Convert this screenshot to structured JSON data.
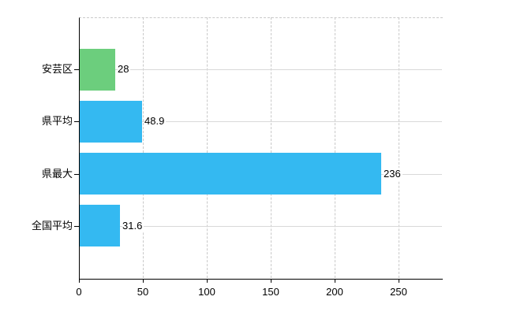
{
  "chart_data": {
    "type": "bar",
    "orientation": "horizontal",
    "title": "",
    "xlabel": "",
    "ylabel": "",
    "categories": [
      "安芸区",
      "県平均",
      "県最大",
      "全国平均"
    ],
    "values": [
      28,
      48.9,
      236,
      31.6
    ],
    "value_labels": [
      "28",
      "48.9",
      "236",
      "31.6"
    ],
    "bar_colors": [
      "#6CCE7D",
      "#34B9F1",
      "#34B9F1",
      "#34B9F1"
    ],
    "xlim": [
      0,
      284
    ],
    "x_ticks": [
      0,
      50,
      100,
      150,
      200,
      250
    ],
    "grid": {
      "vertical_style": "dashed",
      "horizontal_style": "solid",
      "top_border_style": "dashed"
    },
    "legend_position": "none",
    "colors": {
      "axis": "#000000",
      "grid_vertical": "#c9c9c9",
      "grid_horizontal": "#d9d9d9",
      "text": "#000000",
      "background": "#ffffff"
    }
  }
}
